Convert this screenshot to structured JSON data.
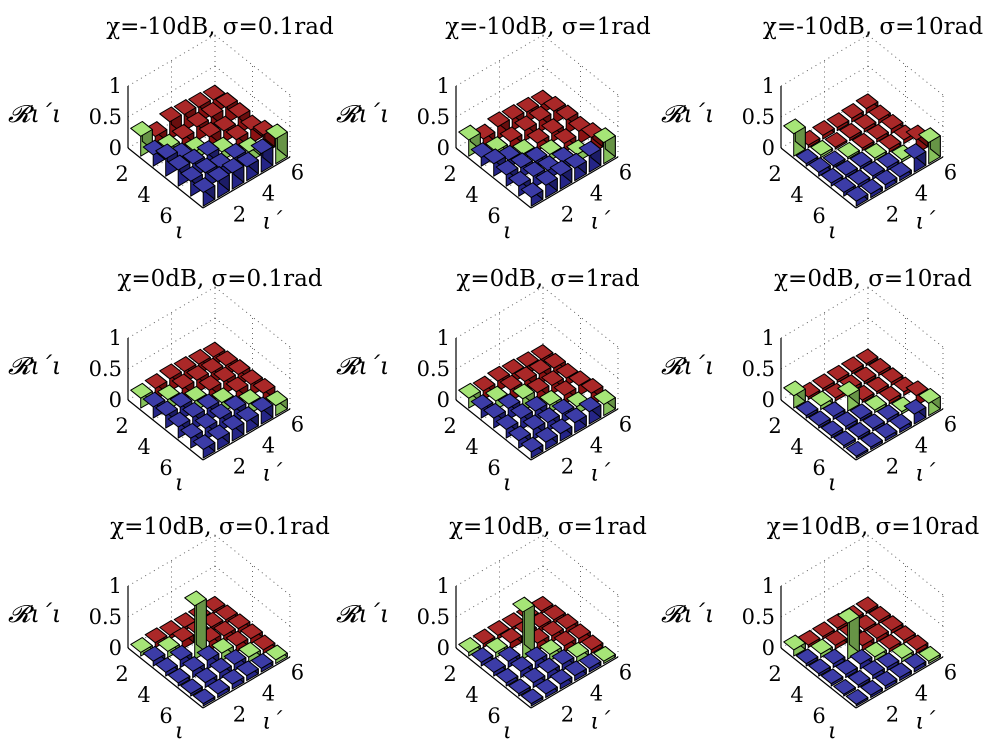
{
  "colors": {
    "region_row_first": "#2b2b9f",
    "region_diag": "#9ee36b",
    "region_upper": "#a31515",
    "region_lower": "#2b2b9f"
  },
  "chart_data": [
    {
      "type": "bar3d",
      "title": "χ=-10dB, σ=0.1rad",
      "zlabel": "𝓡ι΄ι",
      "xlabel": "ι",
      "ylabel": "ι΄",
      "x_ticks": [
        "2",
        "4",
        "6"
      ],
      "y_ticks": [
        "2",
        "4",
        "6"
      ],
      "z_ticks": [
        "1",
        "0.5",
        "0"
      ],
      "zlim": [
        0,
        1
      ],
      "matrix": [
        [
          0.32,
          0.18,
          0.28,
          0.26,
          0.24,
          0.22
        ],
        [
          0.18,
          0.14,
          0.16,
          0.22,
          0.24,
          0.26
        ],
        [
          0.28,
          0.16,
          0.12,
          0.22,
          0.18,
          0.26
        ],
        [
          0.26,
          0.22,
          0.22,
          0.14,
          0.2,
          0.22
        ],
        [
          0.24,
          0.24,
          0.18,
          0.2,
          0.16,
          0.3
        ],
        [
          0.22,
          0.26,
          0.26,
          0.22,
          0.3,
          0.4
        ]
      ]
    },
    {
      "type": "bar3d",
      "title": "χ=-10dB, σ=1rad",
      "zlabel": "𝓡ι΄ι",
      "xlabel": "ι",
      "ylabel": "ι΄",
      "x_ticks": [
        "2",
        "4",
        "6"
      ],
      "y_ticks": [
        "2",
        "4",
        "6"
      ],
      "z_ticks": [
        "1",
        "0.5",
        "0"
      ],
      "zlim": [
        0,
        1
      ],
      "matrix": [
        [
          0.26,
          0.14,
          0.2,
          0.18,
          0.16,
          0.14
        ],
        [
          0.14,
          0.1,
          0.12,
          0.16,
          0.18,
          0.2
        ],
        [
          0.2,
          0.12,
          0.08,
          0.12,
          0.14,
          0.22
        ],
        [
          0.18,
          0.16,
          0.12,
          0.1,
          0.14,
          0.2
        ],
        [
          0.16,
          0.18,
          0.14,
          0.14,
          0.12,
          0.26
        ],
        [
          0.14,
          0.2,
          0.22,
          0.2,
          0.26,
          0.34
        ]
      ]
    },
    {
      "type": "bar3d",
      "title": "χ=-10dB, σ=10rad",
      "zlabel": "𝓡ι΄ι",
      "xlabel": "ι",
      "ylabel": "ι΄",
      "x_ticks": [
        "2",
        "4",
        "6"
      ],
      "y_ticks": [
        "2",
        "4",
        "6"
      ],
      "z_ticks": [
        "1",
        "0.5",
        "0"
      ],
      "zlim": [
        0,
        1
      ],
      "matrix": [
        [
          0.36,
          0.04,
          0.06,
          0.05,
          0.06,
          0.08
        ],
        [
          0.04,
          0.04,
          0.03,
          0.04,
          0.05,
          0.06
        ],
        [
          0.06,
          0.03,
          0.03,
          0.04,
          0.05,
          0.07
        ],
        [
          0.05,
          0.04,
          0.04,
          0.04,
          0.05,
          0.06
        ],
        [
          0.06,
          0.05,
          0.05,
          0.05,
          0.04,
          0.22
        ],
        [
          0.08,
          0.06,
          0.07,
          0.06,
          0.22,
          0.34
        ]
      ]
    },
    {
      "type": "bar3d",
      "title": "χ=0dB, σ=0.1rad",
      "zlabel": "𝓡ι΄ι",
      "xlabel": "ι",
      "ylabel": "ι΄",
      "x_ticks": [
        "2",
        "4",
        "6"
      ],
      "y_ticks": [
        "2",
        "4",
        "6"
      ],
      "z_ticks": [
        "1",
        "0.5",
        "0"
      ],
      "zlim": [
        0,
        1
      ],
      "matrix": [
        [
          0.16,
          0.18,
          0.2,
          0.18,
          0.16,
          0.14
        ],
        [
          0.18,
          0.16,
          0.2,
          0.2,
          0.18,
          0.16
        ],
        [
          0.2,
          0.2,
          0.16,
          0.2,
          0.2,
          0.18
        ],
        [
          0.18,
          0.2,
          0.2,
          0.16,
          0.2,
          0.18
        ],
        [
          0.16,
          0.18,
          0.2,
          0.2,
          0.16,
          0.2
        ],
        [
          0.14,
          0.16,
          0.18,
          0.18,
          0.2,
          0.16
        ]
      ]
    },
    {
      "type": "bar3d",
      "title": "χ=0dB, σ=1rad",
      "zlabel": "𝓡ι΄ι",
      "xlabel": "ι",
      "ylabel": "ι΄",
      "x_ticks": [
        "2",
        "4",
        "6"
      ],
      "y_ticks": [
        "2",
        "4",
        "6"
      ],
      "z_ticks": [
        "1",
        "0.5",
        "0"
      ],
      "zlim": [
        0,
        1
      ],
      "matrix": [
        [
          0.16,
          0.14,
          0.16,
          0.14,
          0.12,
          0.1
        ],
        [
          0.14,
          0.14,
          0.18,
          0.18,
          0.16,
          0.12
        ],
        [
          0.16,
          0.18,
          0.2,
          0.16,
          0.14,
          0.12
        ],
        [
          0.14,
          0.18,
          0.16,
          0.12,
          0.14,
          0.16
        ],
        [
          0.12,
          0.16,
          0.14,
          0.14,
          0.12,
          0.2
        ],
        [
          0.1,
          0.12,
          0.12,
          0.16,
          0.2,
          0.18
        ]
      ]
    },
    {
      "type": "bar3d",
      "title": "χ=0dB, σ=10rad",
      "zlabel": "𝓡ι΄ι",
      "xlabel": "ι",
      "ylabel": "ι΄",
      "x_ticks": [
        "2",
        "4",
        "6"
      ],
      "y_ticks": [
        "2",
        "4",
        "6"
      ],
      "z_ticks": [
        "1",
        "0.5",
        "0"
      ],
      "zlim": [
        0,
        1
      ],
      "matrix": [
        [
          0.2,
          0.04,
          0.04,
          0.04,
          0.04,
          0.03
        ],
        [
          0.04,
          0.06,
          0.05,
          0.05,
          0.04,
          0.04
        ],
        [
          0.04,
          0.05,
          0.24,
          0.04,
          0.04,
          0.05
        ],
        [
          0.04,
          0.05,
          0.04,
          0.04,
          0.05,
          0.06
        ],
        [
          0.04,
          0.04,
          0.04,
          0.05,
          0.04,
          0.16
        ],
        [
          0.03,
          0.04,
          0.05,
          0.06,
          0.16,
          0.2
        ]
      ]
    },
    {
      "type": "bar3d",
      "title": "χ=10dB, σ=0.1rad",
      "zlabel": "𝓡ι΄ι",
      "xlabel": "ι",
      "ylabel": "ι΄",
      "x_ticks": [
        "2",
        "4",
        "6"
      ],
      "y_ticks": [
        "2",
        "4",
        "6"
      ],
      "z_ticks": [
        "1",
        "0.5",
        "0"
      ],
      "zlim": [
        0,
        1
      ],
      "matrix": [
        [
          0.06,
          0.08,
          0.06,
          0.05,
          0.04,
          0.04
        ],
        [
          0.08,
          0.1,
          0.12,
          0.1,
          0.08,
          0.06
        ],
        [
          0.06,
          0.12,
          0.86,
          0.14,
          0.1,
          0.08
        ],
        [
          0.05,
          0.1,
          0.14,
          0.12,
          0.1,
          0.08
        ],
        [
          0.04,
          0.08,
          0.1,
          0.1,
          0.08,
          0.06
        ],
        [
          0.04,
          0.06,
          0.08,
          0.08,
          0.06,
          0.06
        ]
      ]
    },
    {
      "type": "bar3d",
      "title": "χ=10dB, σ=1rad",
      "zlabel": "𝓡ι΄ι",
      "xlabel": "ι",
      "ylabel": "ι΄",
      "x_ticks": [
        "2",
        "4",
        "6"
      ],
      "y_ticks": [
        "2",
        "4",
        "6"
      ],
      "z_ticks": [
        "1",
        "0.5",
        "0"
      ],
      "zlim": [
        0,
        1
      ],
      "matrix": [
        [
          0.06,
          0.06,
          0.06,
          0.05,
          0.04,
          0.04
        ],
        [
          0.06,
          0.08,
          0.1,
          0.1,
          0.08,
          0.06
        ],
        [
          0.06,
          0.1,
          0.76,
          0.12,
          0.1,
          0.08
        ],
        [
          0.05,
          0.1,
          0.12,
          0.1,
          0.1,
          0.08
        ],
        [
          0.04,
          0.08,
          0.1,
          0.1,
          0.08,
          0.06
        ],
        [
          0.04,
          0.06,
          0.08,
          0.08,
          0.06,
          0.04
        ]
      ]
    },
    {
      "type": "bar3d",
      "title": "χ=10dB, σ=10rad",
      "zlabel": "𝓡ι΄ι",
      "xlabel": "ι",
      "ylabel": "ι΄",
      "x_ticks": [
        "2",
        "4",
        "6"
      ],
      "y_ticks": [
        "2",
        "4",
        "6"
      ],
      "z_ticks": [
        "1",
        "0.5",
        "0"
      ],
      "zlim": [
        0,
        1
      ],
      "matrix": [
        [
          0.1,
          0.04,
          0.04,
          0.04,
          0.03,
          0.03
        ],
        [
          0.04,
          0.06,
          0.06,
          0.05,
          0.04,
          0.04
        ],
        [
          0.04,
          0.06,
          0.58,
          0.08,
          0.06,
          0.05
        ],
        [
          0.04,
          0.05,
          0.08,
          0.06,
          0.05,
          0.05
        ],
        [
          0.03,
          0.04,
          0.06,
          0.05,
          0.06,
          0.06
        ],
        [
          0.03,
          0.04,
          0.05,
          0.05,
          0.06,
          0.04
        ]
      ]
    }
  ]
}
